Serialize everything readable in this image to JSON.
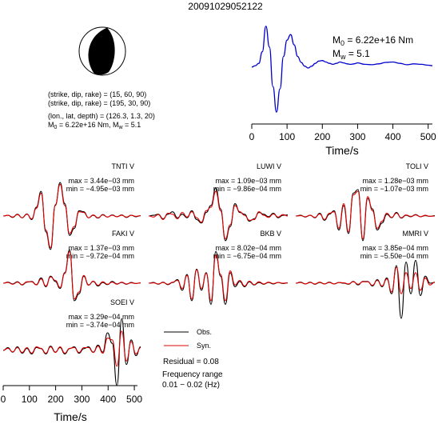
{
  "event_id": "20091029052122",
  "moment_label": "M",
  "moment_sub": "0",
  "moment_value": " = 6.22e+16 Nm",
  "mw_label": "M",
  "mw_sub": "w",
  "mw_value": " = 5.1",
  "params": {
    "plane1": "(strike, dip, rake) = (15, 60, 90)",
    "plane2": "(strike, dip, rake) = (195, 30, 90)",
    "location": "(lon., lat, depth) = (126.3, 1.3, 20)",
    "m0_prefix": "M",
    "m0_sub": "0",
    "m0_text": " = 6.22e+16 Nm, M",
    "mw_sub": "w",
    "mw_text": " = 5.1"
  },
  "legend": {
    "obs": "Obs.",
    "syn": "Syn.",
    "residual": "Residual = 0.08",
    "freq_label": "Frequency range",
    "freq_value": "0.01 − 0.02 (Hz)"
  },
  "colors": {
    "observed": "#000000",
    "synthetic": "#e00000",
    "stf": "#0000cc"
  },
  "chart_data": [
    {
      "type": "line",
      "name": "source-time-function",
      "xlabel": "Time/s",
      "xlim": [
        0,
        512
      ],
      "xticks": [
        0,
        100,
        200,
        300,
        400,
        500
      ],
      "series": [
        {
          "color": "#0000cc",
          "x": [
            0,
            10,
            20,
            30,
            40,
            50,
            60,
            70,
            80,
            90,
            100,
            110,
            120,
            130,
            140,
            150,
            160,
            170,
            180,
            190,
            200,
            210,
            220,
            230,
            240,
            250,
            260,
            270,
            280,
            290,
            300,
            320,
            340,
            360,
            380,
            400,
            420,
            440,
            460,
            480,
            500,
            512
          ],
          "y": [
            0.02,
            0.05,
            0.1,
            0.35,
            0.9,
            0.45,
            -0.4,
            -0.95,
            -0.45,
            0.25,
            0.6,
            0.72,
            0.5,
            0.25,
            0.12,
            0.04,
            0.0,
            0.04,
            0.1,
            0.15,
            0.16,
            0.13,
            0.1,
            0.08,
            0.1,
            0.13,
            0.11,
            0.09,
            0.08,
            0.09,
            0.11,
            0.08,
            0.07,
            0.09,
            0.12,
            0.13,
            0.1,
            0.07,
            0.09,
            0.08,
            0.06,
            0.05
          ]
        }
      ]
    },
    {
      "type": "line",
      "name": "waveform-fits",
      "xlabel": "Time/s",
      "xlim": [
        0,
        512
      ],
      "xticks": [
        0,
        100,
        200,
        300,
        400,
        500
      ],
      "stations": [
        {
          "name": "TNTI V",
          "max": "max = 3.44e−03 mm",
          "min": "min = −4.95e−03 mm",
          "obs": [
            0,
            0.02,
            -0.04,
            0.05,
            -0.05,
            0.06,
            -0.1,
            0.25,
            0.7,
            -0.45,
            -0.95,
            0.3,
            0.95,
            0.35,
            -0.55,
            -0.35,
            0.15,
            0.12,
            -0.05,
            0.02,
            -0.06,
            0.04,
            -0.03,
            0.03,
            -0.02,
            0.03,
            -0.04,
            0.02,
            -0.02,
            0.01
          ],
          "syn": [
            0,
            0.02,
            -0.03,
            0.04,
            -0.05,
            0.05,
            -0.08,
            0.22,
            0.65,
            -0.4,
            -0.9,
            0.32,
            0.9,
            0.3,
            -0.5,
            -0.3,
            0.12,
            0.1,
            -0.05,
            0.03,
            -0.05,
            0.03,
            -0.03,
            0.02,
            -0.02,
            0.02,
            -0.03,
            0.02,
            -0.01,
            0.01
          ]
        },
        {
          "name": "LUWI V",
          "max": "max = 1.09e−03 mm",
          "min": "min = −9.86e−04 mm",
          "obs": [
            0,
            0.02,
            0.05,
            -0.08,
            0.05,
            0.12,
            -0.05,
            0.05,
            -0.05,
            0.15,
            -0.1,
            -0.2,
            0.1,
            0.3,
            0.8,
            0.2,
            -0.7,
            -0.3,
            0.35,
            0.1,
            0.05,
            -0.15,
            -0.08,
            0.1,
            0.05,
            -0.02,
            0.08,
            -0.05,
            0.02,
            0.03
          ],
          "syn": [
            0,
            -0.03,
            0.04,
            -0.1,
            0.08,
            0.05,
            -0.08,
            0.1,
            -0.03,
            0.12,
            -0.05,
            -0.18,
            0.15,
            0.25,
            0.7,
            0.15,
            -0.65,
            -0.25,
            0.3,
            0.12,
            0.02,
            -0.12,
            -0.1,
            0.12,
            0.02,
            -0.04,
            0.06,
            -0.03,
            0.04,
            0.0
          ]
        },
        {
          "name": "TOLI V",
          "max": "max = 1.28e−03 mm",
          "min": "min = −1.07e−03 mm",
          "obs": [
            0,
            0.02,
            -0.03,
            0.02,
            -0.05,
            0.08,
            -0.12,
            0.05,
            0.15,
            -0.4,
            0.3,
            -0.5,
            0.65,
            0.75,
            -0.7,
            0.5,
            0.2,
            -0.4,
            -0.2,
            0.05,
            -0.05,
            0.1,
            -0.06,
            0.02,
            -0.02,
            0.04,
            -0.02,
            0.01,
            -0.01,
            0.01
          ],
          "syn": [
            0,
            0.01,
            -0.02,
            0.02,
            -0.04,
            0.06,
            -0.1,
            0.08,
            0.12,
            -0.35,
            0.35,
            -0.45,
            0.6,
            0.7,
            -0.65,
            0.55,
            0.15,
            -0.35,
            -0.15,
            0.08,
            -0.04,
            0.08,
            -0.05,
            0.03,
            -0.01,
            0.03,
            -0.02,
            0.02,
            -0.01,
            0.0
          ]
        },
        {
          "name": "FAKI V",
          "max": "max = 1.37e−03 mm",
          "min": "min = −9.72e−04 mm",
          "obs": [
            0,
            0.03,
            -0.02,
            0.04,
            -0.05,
            0.03,
            0.05,
            -0.04,
            0.15,
            -0.1,
            0.2,
            0.05,
            -0.15,
            0.3,
            0.95,
            -0.5,
            -0.3,
            0.2,
            -0.05,
            0.05,
            -0.08,
            0.02,
            -0.04,
            0.05,
            -0.02,
            0.02,
            -0.03,
            0.02,
            -0.01,
            0.01
          ],
          "syn": [
            0,
            0.02,
            -0.03,
            0.03,
            -0.04,
            0.04,
            0.04,
            -0.05,
            0.12,
            -0.08,
            0.18,
            0.08,
            -0.12,
            0.28,
            0.9,
            -0.45,
            -0.25,
            0.22,
            -0.06,
            0.06,
            -0.06,
            0.04,
            -0.03,
            0.03,
            -0.03,
            0.03,
            -0.02,
            0.01,
            -0.01,
            0.01
          ]
        },
        {
          "name": "BKB V",
          "max": "max = 8.02e−04 mm",
          "min": "min = −6.75e−04 mm",
          "obs": [
            0,
            0.02,
            -0.03,
            0.03,
            -0.04,
            0.02,
            0.1,
            -0.2,
            0.25,
            -0.5,
            0.4,
            -0.2,
            0.3,
            -0.6,
            0.9,
            0.2,
            -0.6,
            0.3,
            -0.1,
            0.05,
            -0.1,
            0.04,
            -0.05,
            0.02,
            -0.03,
            0.02,
            -0.02,
            0.02,
            -0.01,
            0.01
          ],
          "syn": [
            0,
            0.01,
            -0.02,
            0.02,
            -0.03,
            0.03,
            0.08,
            -0.15,
            0.22,
            -0.45,
            0.38,
            -0.15,
            0.28,
            -0.5,
            0.8,
            0.25,
            -0.5,
            0.35,
            -0.05,
            0.08,
            -0.08,
            0.06,
            -0.04,
            0.04,
            -0.02,
            0.03,
            -0.01,
            0.02,
            0.0,
            0.01
          ]
        },
        {
          "name": "MMRI V",
          "max": "max = 3.85e−04 mm",
          "min": "min = −5.50e−04 mm",
          "obs": [
            0,
            0.03,
            -0.02,
            0.03,
            -0.03,
            0.02,
            -0.02,
            0.03,
            -0.02,
            0.02,
            0.0,
            -0.03,
            0.05,
            -0.05,
            0.05,
            0.05,
            -0.08,
            0.1,
            -0.1,
            0.15,
            -0.3,
            0.5,
            -1.0,
            0.6,
            -0.3,
            0.65,
            -0.35,
            0.2,
            0.0,
            0.02
          ],
          "syn": [
            0,
            0.02,
            -0.02,
            0.02,
            -0.02,
            0.03,
            -0.02,
            0.02,
            -0.02,
            0.02,
            0.01,
            -0.02,
            0.04,
            -0.03,
            0.04,
            0.04,
            -0.06,
            0.08,
            -0.08,
            0.12,
            -0.25,
            0.45,
            -0.3,
            0.3,
            -0.15,
            0.3,
            -0.2,
            0.15,
            -0.05,
            0.03
          ]
        },
        {
          "name": "SOEI V",
          "max": "max = 3.29e−04 mm",
          "min": "min = −3.74e−04 mm",
          "obs": [
            0,
            0.08,
            -0.05,
            0.1,
            -0.08,
            0.06,
            -0.1,
            0.08,
            0.05,
            -0.1,
            0.12,
            -0.05,
            0.08,
            -0.1,
            0.05,
            0.1,
            -0.08,
            0.05,
            0.1,
            -0.05,
            0.15,
            -0.05,
            0.5,
            0.2,
            -1.0,
            0.9,
            -0.4,
            0.3,
            -0.15,
            0.1
          ],
          "syn": [
            0,
            0.06,
            -0.04,
            0.08,
            -0.06,
            0.08,
            -0.08,
            0.1,
            0.06,
            -0.08,
            0.1,
            -0.06,
            0.1,
            -0.08,
            0.06,
            0.08,
            -0.06,
            0.08,
            0.08,
            -0.06,
            0.12,
            -0.08,
            0.35,
            0.3,
            -0.45,
            0.55,
            -0.3,
            0.25,
            -0.1,
            0.08
          ]
        }
      ]
    }
  ]
}
